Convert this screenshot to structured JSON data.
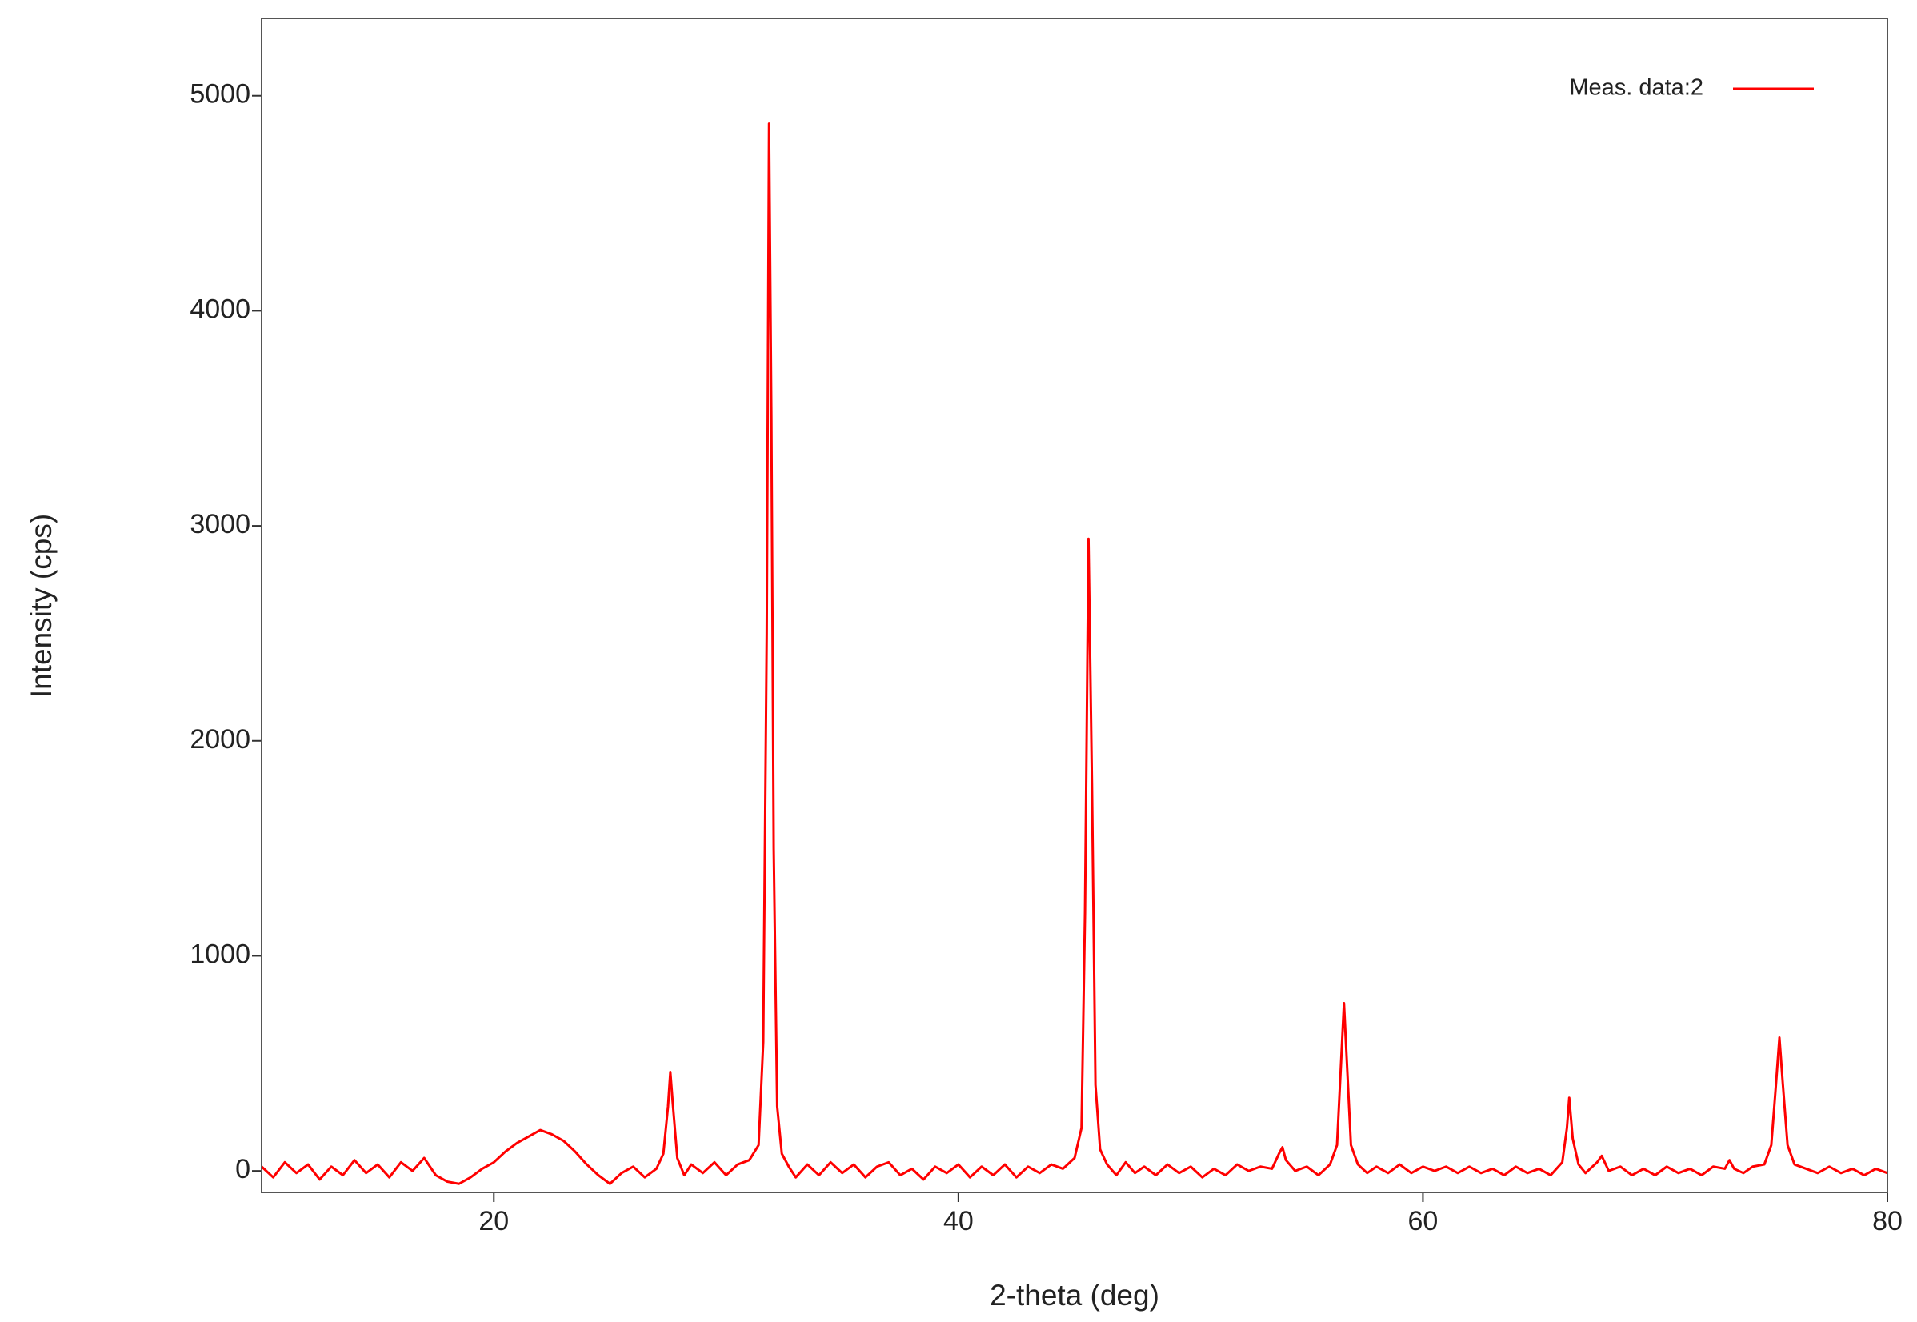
{
  "chart_data": {
    "type": "line",
    "xlabel": "2-theta (deg)",
    "ylabel": "Intensity (cps)",
    "xlim": [
      10,
      80
    ],
    "ylim": [
      -100,
      5360
    ],
    "xticks": [
      20,
      40,
      60,
      80
    ],
    "yticks": [
      0,
      1000,
      2000,
      3000,
      4000,
      5000
    ],
    "grid": false,
    "legend": "upper right",
    "x": [
      10,
      10.5,
      11,
      11.5,
      12,
      12.5,
      13,
      13.5,
      14,
      14.5,
      15,
      15.5,
      16,
      16.5,
      17,
      17.5,
      18,
      18.5,
      19,
      19.5,
      20,
      20.5,
      21,
      21.5,
      22,
      22.5,
      23,
      23.5,
      24,
      24.5,
      25,
      25.5,
      26,
      26.5,
      27,
      27.3,
      27.5,
      27.6,
      27.7,
      27.9,
      28.2,
      28.5,
      29,
      29.5,
      30,
      30.5,
      31,
      31.4,
      31.6,
      31.75,
      31.85,
      31.95,
      32.05,
      32.2,
      32.4,
      32.7,
      33,
      33.5,
      34,
      34.5,
      35,
      35.5,
      36,
      36.5,
      37,
      37.5,
      38,
      38.5,
      39,
      39.5,
      40,
      40.5,
      41,
      41.5,
      42,
      42.5,
      43,
      43.5,
      44,
      44.5,
      45,
      45.3,
      45.45,
      45.6,
      45.75,
      45.9,
      46.1,
      46.4,
      46.8,
      47.2,
      47.6,
      48,
      48.5,
      49,
      49.5,
      50,
      50.5,
      51,
      51.5,
      52,
      52.5,
      53,
      53.5,
      53.8,
      53.95,
      54.1,
      54.5,
      55,
      55.5,
      56,
      56.3,
      56.45,
      56.6,
      56.75,
      56.9,
      57.2,
      57.6,
      58,
      58.5,
      59,
      59.5,
      60,
      60.5,
      61,
      61.5,
      62,
      62.5,
      63,
      63.5,
      64,
      64.5,
      65,
      65.5,
      66,
      66.2,
      66.3,
      66.45,
      66.7,
      67,
      67.5,
      67.7,
      68,
      68.5,
      69,
      69.5,
      70,
      70.5,
      71,
      71.5,
      72,
      72.5,
      73,
      73.2,
      73.4,
      73.8,
      74.2,
      74.7,
      75,
      75.2,
      75.35,
      75.5,
      75.7,
      76,
      76.5,
      77,
      77.5,
      78,
      78.5,
      79,
      79.5,
      80
    ],
    "series": [
      {
        "name": "Meas. data:2",
        "color": "#ff0000",
        "values": [
          20,
          -30,
          40,
          -10,
          30,
          -40,
          20,
          -20,
          50,
          -10,
          30,
          -30,
          40,
          0,
          60,
          -20,
          -50,
          -60,
          -30,
          10,
          40,
          90,
          130,
          160,
          190,
          170,
          140,
          90,
          30,
          -20,
          -60,
          -10,
          20,
          -30,
          10,
          80,
          300,
          460,
          320,
          60,
          -20,
          30,
          -10,
          40,
          -20,
          30,
          50,
          120,
          600,
          2500,
          4870,
          3500,
          1500,
          300,
          80,
          20,
          -30,
          30,
          -20,
          40,
          -10,
          30,
          -30,
          20,
          40,
          -20,
          10,
          -40,
          20,
          -10,
          30,
          -30,
          20,
          -20,
          30,
          -30,
          20,
          -10,
          30,
          10,
          60,
          200,
          1200,
          2940,
          1800,
          400,
          100,
          30,
          -20,
          40,
          -10,
          20,
          -20,
          30,
          -10,
          20,
          -30,
          10,
          -20,
          30,
          0,
          20,
          10,
          80,
          110,
          50,
          0,
          20,
          -20,
          30,
          120,
          450,
          780,
          450,
          120,
          30,
          -10,
          20,
          -10,
          30,
          -10,
          20,
          0,
          20,
          -10,
          20,
          -10,
          10,
          -20,
          20,
          -10,
          10,
          -20,
          40,
          200,
          340,
          150,
          30,
          -10,
          40,
          70,
          0,
          20,
          -20,
          10,
          -20,
          20,
          -10,
          10,
          -20,
          20,
          10,
          50,
          10,
          -10,
          20,
          30,
          120,
          400,
          620,
          400,
          120,
          30,
          10,
          -10,
          20,
          -10,
          10,
          -20,
          10,
          -10
        ]
      }
    ]
  }
}
